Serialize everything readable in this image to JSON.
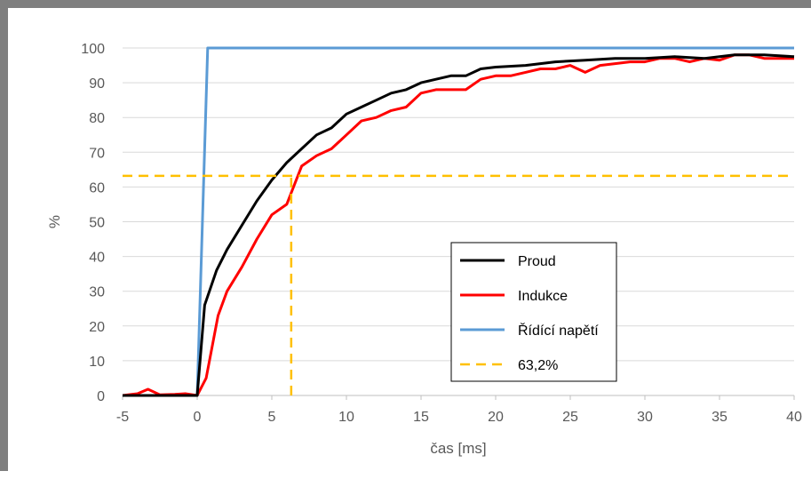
{
  "chart_data": {
    "type": "line",
    "title": "",
    "xlabel": "čas [ms]",
    "ylabel": "%",
    "xlim": [
      -5,
      40
    ],
    "ylim": [
      0,
      100
    ],
    "xticks": [
      -5,
      0,
      5,
      10,
      15,
      20,
      25,
      30,
      35,
      40
    ],
    "yticks": [
      0,
      10,
      20,
      30,
      40,
      50,
      60,
      70,
      80,
      90,
      100
    ],
    "grid": "horizontal",
    "legend_position": "bottom-right inside plot",
    "series": [
      {
        "name": "Proud",
        "color": "#000000",
        "style": "solid",
        "points": [
          [
            -5,
            0
          ],
          [
            0,
            0
          ],
          [
            0.5,
            26
          ],
          [
            1.3,
            36
          ],
          [
            2,
            42
          ],
          [
            3,
            49
          ],
          [
            4,
            56
          ],
          [
            5,
            62
          ],
          [
            6,
            67
          ],
          [
            7,
            71
          ],
          [
            8,
            75
          ],
          [
            9,
            77
          ],
          [
            10,
            81
          ],
          [
            11,
            83
          ],
          [
            12,
            85
          ],
          [
            13,
            87
          ],
          [
            14,
            88
          ],
          [
            15,
            90
          ],
          [
            16,
            91
          ],
          [
            17,
            92
          ],
          [
            18,
            92
          ],
          [
            19,
            94
          ],
          [
            20,
            94.5
          ],
          [
            22,
            95
          ],
          [
            24,
            96
          ],
          [
            26,
            96.5
          ],
          [
            28,
            97
          ],
          [
            30,
            97
          ],
          [
            32,
            97.5
          ],
          [
            34,
            97
          ],
          [
            36,
            98
          ],
          [
            38,
            98
          ],
          [
            40,
            97.5
          ]
        ]
      },
      {
        "name": "Indukce",
        "color": "#ff0000",
        "style": "solid",
        "points": [
          [
            -5,
            0
          ],
          [
            -4,
            0.5
          ],
          [
            -3.3,
            1.8
          ],
          [
            -2.5,
            0.2
          ],
          [
            -1.5,
            0.3
          ],
          [
            -0.8,
            0.5
          ],
          [
            0,
            0
          ],
          [
            0.6,
            5
          ],
          [
            1.4,
            23
          ],
          [
            2,
            30
          ],
          [
            3,
            37
          ],
          [
            4,
            45
          ],
          [
            5,
            52
          ],
          [
            6,
            55
          ],
          [
            7,
            66
          ],
          [
            8,
            69
          ],
          [
            9,
            71
          ],
          [
            10,
            75
          ],
          [
            11,
            79
          ],
          [
            12,
            80
          ],
          [
            13,
            82
          ],
          [
            14,
            83
          ],
          [
            15,
            87
          ],
          [
            16,
            88
          ],
          [
            17,
            88
          ],
          [
            18,
            88
          ],
          [
            19,
            91
          ],
          [
            20,
            92
          ],
          [
            21,
            92
          ],
          [
            22,
            93
          ],
          [
            23,
            94
          ],
          [
            24,
            94
          ],
          [
            25,
            95
          ],
          [
            26,
            93
          ],
          [
            27,
            95
          ],
          [
            28,
            95.5
          ],
          [
            29,
            96
          ],
          [
            30,
            96
          ],
          [
            31,
            97
          ],
          [
            32,
            97
          ],
          [
            33,
            96
          ],
          [
            34,
            97
          ],
          [
            35,
            96.5
          ],
          [
            36,
            98
          ],
          [
            37,
            98
          ],
          [
            38,
            97
          ],
          [
            39,
            97
          ],
          [
            40,
            97
          ]
        ]
      },
      {
        "name": "Řídící napětí",
        "color": "#5b9bd5",
        "style": "solid",
        "points": [
          [
            -5,
            0
          ],
          [
            0,
            0
          ],
          [
            0.7,
            100
          ],
          [
            40,
            100
          ]
        ]
      },
      {
        "name": "63,2%",
        "color": "#ffc000",
        "style": "dashed",
        "points": [
          [
            -5,
            63.2
          ],
          [
            40,
            63.2
          ]
        ]
      }
    ],
    "annotations": [
      {
        "type": "vertical-dashed",
        "x": 6.3,
        "y_from": 0,
        "y_to": 63.2,
        "color": "#ffc000"
      }
    ]
  }
}
